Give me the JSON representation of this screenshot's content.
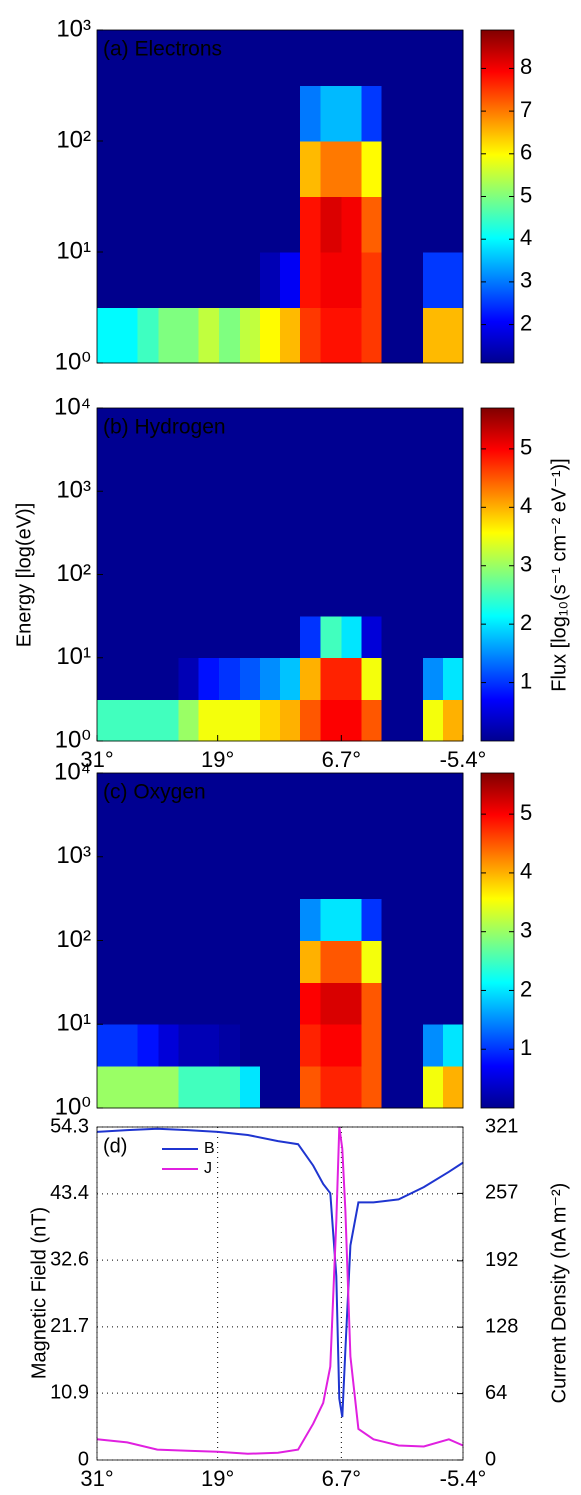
{
  "chart_data": [
    {
      "type": "heatmap",
      "title": "(a) Electrons",
      "x": [
        30.0,
        28.0,
        25.9,
        23.9,
        21.9,
        19.9,
        17.8,
        15.8,
        13.8,
        11.8,
        9.8,
        7.7,
        5.7,
        3.7,
        1.7,
        -0.4,
        -2.4,
        -4.4
      ],
      "energy": [
        1.78,
        5.62,
        17.8,
        56.2,
        178,
        562
      ],
      "z": [
        [
          4,
          4,
          4.5,
          5,
          5,
          5.5,
          5,
          5.5,
          6,
          6.5,
          7.5,
          7.8,
          7.8,
          7.5,
          1.2,
          1.2,
          6.5,
          6.5
        ],
        [
          1.2,
          1.2,
          1.2,
          1.2,
          1.2,
          1.2,
          1.2,
          1.2,
          1.5,
          2,
          7.8,
          8,
          8,
          7.5,
          1.2,
          1.2,
          2.5,
          2.5
        ],
        [
          1.2,
          1.2,
          1.2,
          1.2,
          1.2,
          1.2,
          1.2,
          1.2,
          1.2,
          1.2,
          7.8,
          8.2,
          8,
          7.2,
          1.2,
          1.2,
          1.2,
          1.2
        ],
        [
          1.2,
          1.2,
          1.2,
          1.2,
          1.2,
          1.2,
          1.2,
          1.2,
          1.2,
          1.2,
          6.5,
          7,
          7,
          6,
          1.2,
          1.2,
          1.2,
          1.2
        ],
        [
          1.2,
          1.2,
          1.2,
          1.2,
          1.2,
          1.2,
          1.2,
          1.2,
          1.2,
          1.2,
          3,
          3.5,
          3.5,
          2.5,
          1.2,
          1.2,
          1.2,
          1.2
        ],
        [
          1.2,
          1.2,
          1.2,
          1.2,
          1.2,
          1.2,
          1.2,
          1.2,
          1.2,
          1.2,
          1.2,
          1.2,
          1.2,
          1.2,
          1.2,
          1.2,
          1.2,
          1.2
        ]
      ],
      "xlim": [
        31,
        -5.4
      ],
      "ylim": [
        1,
        1000
      ],
      "log_y": true,
      "yticks": [
        {
          "value": 1,
          "label": "10⁰"
        },
        {
          "value": 10,
          "label": "10¹"
        },
        {
          "value": 100,
          "label": "10²"
        },
        {
          "value": 1000,
          "label": "10³"
        }
      ],
      "zlim": [
        1.1,
        8.9
      ],
      "colorbar_ticks": [
        2,
        3,
        4,
        5,
        6,
        7,
        8
      ],
      "colormap": "jet"
    },
    {
      "type": "heatmap",
      "title": "(b) Hydrogen",
      "ylabel": "Energy [log(eV)]",
      "colorbar_label": "Flux [log₁₀(s⁻¹ cm⁻² eV⁻¹)]",
      "x": [
        30.0,
        28.0,
        25.9,
        23.9,
        21.9,
        19.9,
        17.8,
        15.8,
        13.8,
        11.8,
        9.8,
        7.7,
        5.7,
        3.7,
        1.7,
        -0.4,
        -2.4,
        -4.4
      ],
      "energy": [
        1.78,
        5.62,
        17.8,
        56.2,
        178,
        562,
        1778,
        5623
      ],
      "z": [
        [
          2.5,
          2.5,
          2.5,
          2.5,
          3,
          3.5,
          3.5,
          3.5,
          3.8,
          4,
          4.5,
          5,
          5,
          4.5,
          0.1,
          0.1,
          3.5,
          4
        ],
        [
          0.1,
          0.1,
          0.1,
          0.1,
          0.3,
          0.8,
          1,
          1.2,
          1.5,
          1.8,
          4,
          4.8,
          4.8,
          3.5,
          0.1,
          0.1,
          1.5,
          2
        ],
        [
          0.1,
          0.1,
          0.1,
          0.1,
          0.1,
          0.1,
          0.1,
          0.1,
          0.1,
          0.1,
          1,
          2.5,
          2,
          0.5,
          0.1,
          0.1,
          0.1,
          0.1
        ],
        [
          0.1,
          0.1,
          0.1,
          0.1,
          0.1,
          0.1,
          0.1,
          0.1,
          0.1,
          0.1,
          0.1,
          0.1,
          0.1,
          0.1,
          0.1,
          0.1,
          0.1,
          0.1
        ],
        [
          0.1,
          0.1,
          0.1,
          0.1,
          0.1,
          0.1,
          0.1,
          0.1,
          0.1,
          0.1,
          0.1,
          0.1,
          0.1,
          0.1,
          0.1,
          0.1,
          0.1,
          0.1
        ],
        [
          0.1,
          0.1,
          0.1,
          0.1,
          0.1,
          0.1,
          0.1,
          0.1,
          0.1,
          0.1,
          0.1,
          0.1,
          0.1,
          0.1,
          0.1,
          0.1,
          0.1,
          0.1
        ],
        [
          0.1,
          0.1,
          0.1,
          0.1,
          0.1,
          0.1,
          0.1,
          0.1,
          0.1,
          0.1,
          0.1,
          0.1,
          0.1,
          0.1,
          0.1,
          0.1,
          0.1,
          0.1
        ],
        [
          0.1,
          0.1,
          0.1,
          0.1,
          0.1,
          0.1,
          0.1,
          0.1,
          0.1,
          0.1,
          0.1,
          0.1,
          0.1,
          0.1,
          0.1,
          0.1,
          0.1,
          0.1
        ]
      ],
      "xlim": [
        31,
        -5.4
      ],
      "xticks": [
        {
          "value": 31,
          "label": "31°"
        },
        {
          "value": 19,
          "label": "19°"
        },
        {
          "value": 6.7,
          "label": "6.7°"
        },
        {
          "value": -5.4,
          "label": "-5.4°"
        }
      ],
      "ylim": [
        1,
        10000
      ],
      "log_y": true,
      "yticks": [
        {
          "value": 1,
          "label": "10⁰"
        },
        {
          "value": 10,
          "label": "10¹"
        },
        {
          "value": 100,
          "label": "10²"
        },
        {
          "value": 1000,
          "label": "10³"
        },
        {
          "value": 10000,
          "label": "10⁴"
        }
      ],
      "zlim": [
        0,
        5.7
      ],
      "colorbar_ticks": [
        1,
        2,
        3,
        4,
        5
      ],
      "colormap": "jet"
    },
    {
      "type": "heatmap",
      "title": "(c) Oxygen",
      "x": [
        30.0,
        28.0,
        25.9,
        23.9,
        21.9,
        19.9,
        17.8,
        15.8,
        13.8,
        11.8,
        9.8,
        7.7,
        5.7,
        3.7,
        1.7,
        -0.4,
        -2.4,
        -4.4
      ],
      "energy": [
        1.78,
        5.62,
        17.8,
        56.2,
        178,
        562,
        1778,
        5623
      ],
      "z": [
        [
          3,
          3,
          3,
          3,
          2.5,
          2.5,
          2.5,
          2,
          0.1,
          0.1,
          4.5,
          4.8,
          4.8,
          4.5,
          0.1,
          0.1,
          3.5,
          4
        ],
        [
          1,
          1,
          0.8,
          0.5,
          0.3,
          0.3,
          0.2,
          0.1,
          0.1,
          0.1,
          4.8,
          5,
          5,
          4.5,
          0.1,
          0.1,
          1.5,
          2
        ],
        [
          0.1,
          0.1,
          0.1,
          0.1,
          0.1,
          0.1,
          0.1,
          0.1,
          0.1,
          0.1,
          5,
          5.2,
          5.2,
          4.5,
          0.1,
          0.1,
          0.1,
          0.1
        ],
        [
          0.1,
          0.1,
          0.1,
          0.1,
          0.1,
          0.1,
          0.1,
          0.1,
          0.1,
          0.1,
          4,
          4.5,
          4.5,
          3.5,
          0.1,
          0.1,
          0.1,
          0.1
        ],
        [
          0.1,
          0.1,
          0.1,
          0.1,
          0.1,
          0.1,
          0.1,
          0.1,
          0.1,
          0.1,
          1.5,
          2,
          2,
          1,
          0.1,
          0.1,
          0.1,
          0.1
        ],
        [
          0.1,
          0.1,
          0.1,
          0.1,
          0.1,
          0.1,
          0.1,
          0.1,
          0.1,
          0.1,
          0.1,
          0.1,
          0.1,
          0.1,
          0.1,
          0.1,
          0.1,
          0.1
        ],
        [
          0.1,
          0.1,
          0.1,
          0.1,
          0.1,
          0.1,
          0.1,
          0.1,
          0.1,
          0.1,
          0.1,
          0.1,
          0.1,
          0.1,
          0.1,
          0.1,
          0.1,
          0.1
        ],
        [
          0.1,
          0.1,
          0.1,
          0.1,
          0.1,
          0.1,
          0.1,
          0.1,
          0.1,
          0.1,
          0.1,
          0.1,
          0.1,
          0.1,
          0.1,
          0.1,
          0.1,
          0.1
        ]
      ],
      "xlim": [
        31,
        -5.4
      ],
      "ylim": [
        1,
        10000
      ],
      "log_y": true,
      "yticks": [
        {
          "value": 1,
          "label": "10⁰"
        },
        {
          "value": 10,
          "label": "10¹"
        },
        {
          "value": 100,
          "label": "10²"
        },
        {
          "value": 1000,
          "label": "10³"
        },
        {
          "value": 10000,
          "label": "10⁴"
        }
      ],
      "zlim": [
        0,
        5.7
      ],
      "colorbar_ticks": [
        1,
        2,
        3,
        4,
        5
      ],
      "colormap": "jet"
    },
    {
      "type": "line",
      "title": "(d)",
      "ylabel": "Magnetic Field (nT)",
      "y2label": "Current Density (nA m⁻²)",
      "x": [
        31,
        28,
        25,
        22,
        19,
        16,
        13,
        11,
        9.5,
        8.5,
        7.8,
        7.2,
        6.9,
        6.6,
        6.3,
        5.8,
        5.0,
        3.5,
        1,
        -1.5,
        -4,
        -5.4
      ],
      "series": [
        {
          "name": "B",
          "color": "#1f35d0",
          "axis": "y",
          "values": [
            53.5,
            53.8,
            54,
            53.8,
            53.5,
            53,
            52,
            51.5,
            48,
            45,
            43.5,
            30,
            10,
            7,
            18,
            35,
            42,
            42,
            42.5,
            44.5,
            47,
            48.5
          ]
        },
        {
          "name": "J",
          "color": "#e020e0",
          "axis": "y2",
          "values": [
            20,
            17,
            10,
            9,
            8,
            6,
            7,
            10,
            35,
            55,
            90,
            230,
            321,
            300,
            240,
            100,
            30,
            20,
            14,
            13,
            20,
            14
          ]
        }
      ],
      "xlim": [
        31,
        -5.4
      ],
      "xticks": [
        {
          "value": 31,
          "label": "31°"
        },
        {
          "value": 19,
          "label": "19°"
        },
        {
          "value": 6.7,
          "label": "6.7°"
        },
        {
          "value": -5.4,
          "label": "-5.4°"
        }
      ],
      "ylim": [
        0,
        54.3
      ],
      "yticks": [
        0,
        10.9,
        21.7,
        32.6,
        43.4,
        54.3
      ],
      "y2lim": [
        0,
        321
      ],
      "y2ticks": [
        0,
        64,
        128,
        192,
        257,
        321
      ],
      "grid": true,
      "legend": "upper left"
    }
  ]
}
